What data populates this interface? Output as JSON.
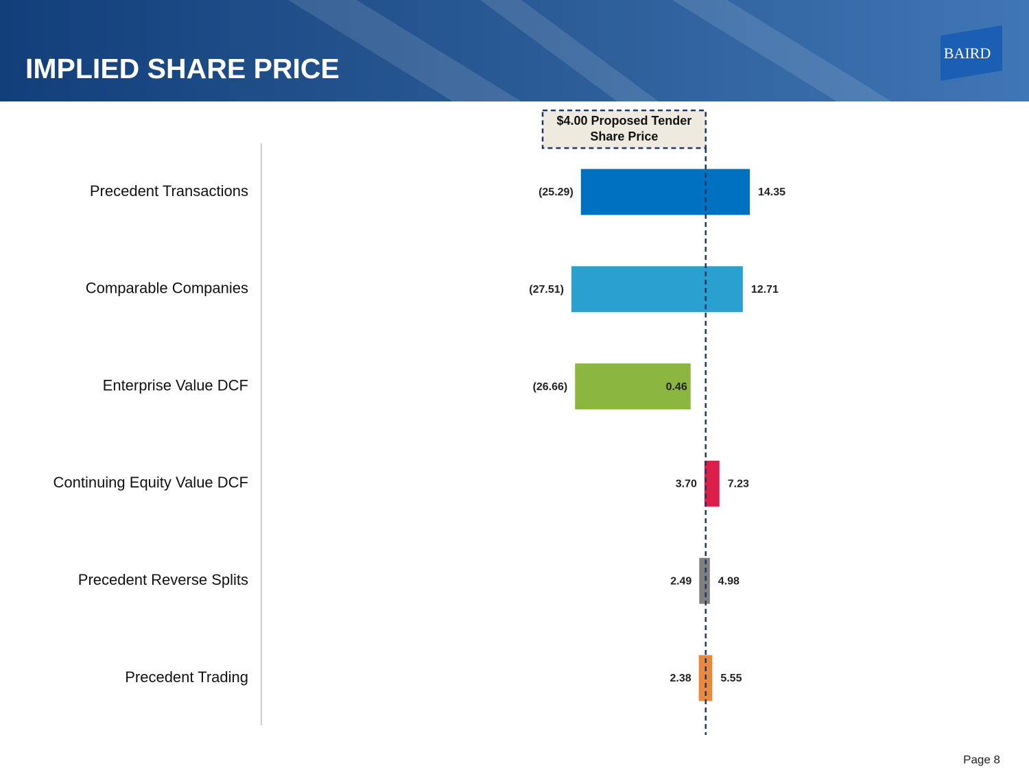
{
  "chart_data": {
    "type": "range-bar",
    "title": "IMPLIED SHARE PRICE",
    "categories": [
      "Precedent Transactions",
      "Comparable Companies",
      "Enterprise Value DCF",
      "Continuing Equity Value DCF",
      "Precedent Reverse Splits",
      "Precedent Trading"
    ],
    "colors": [
      "#0070c0",
      "#2aa0d0",
      "#8bb63f",
      "#dc1e4a",
      "#7f7f7f",
      "#e8893d"
    ],
    "series": [
      {
        "values": [
          -25.29,
          -27.51,
          -26.66,
          3.7,
          2.49,
          2.38
        ],
        "value_labels": [
          "(25.29)",
          "(27.51)",
          "(26.66)",
          "3.70",
          "2.49",
          "2.38"
        ]
      },
      {
        "values": [
          14.35,
          12.71,
          0.46,
          7.23,
          4.98,
          5.55
        ],
        "value_labels": [
          "14.35",
          "12.71",
          "0.46",
          "7.23",
          "4.98",
          "5.55"
        ]
      }
    ],
    "reference": {
      "value": 4,
      "label": [
        "$4.00 Proposed Tender",
        "Share Price"
      ]
    }
  },
  "logo": "BAIRD",
  "page": "Page 8"
}
